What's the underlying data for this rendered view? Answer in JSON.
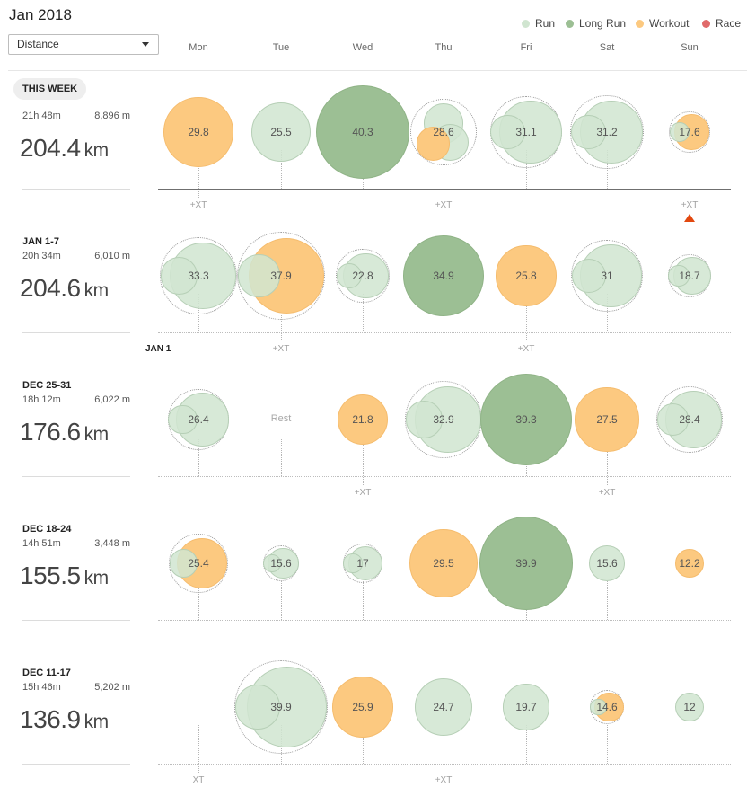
{
  "month_title": "Jan 2018",
  "metric_selector": {
    "value": "Distance"
  },
  "legend": [
    {
      "label": "Run",
      "color": "#d0e5d0"
    },
    {
      "label": "Long Run",
      "color": "#9cbf94"
    },
    {
      "label": "Workout",
      "color": "#fcc980"
    },
    {
      "label": "Race",
      "color": "#e06a6a"
    }
  ],
  "days": [
    "Mon",
    "Tue",
    "Wed",
    "Thu",
    "Fri",
    "Sat",
    "Sun"
  ],
  "weeks": [
    {
      "label": "THIS WEEK",
      "time": "21h 48m",
      "elevation": "8,896 m",
      "total": "204.4",
      "unit": "km",
      "current": true,
      "xt_days": [
        0,
        3,
        6
      ],
      "month_start": null,
      "days": [
        {
          "value": "29.8",
          "type": "workout"
        },
        {
          "value": "25.5",
          "type": "run"
        },
        {
          "value": "40.3",
          "type": "long"
        },
        {
          "value": "28.6",
          "type": "run",
          "parts": [
            "run",
            "run",
            "workout"
          ]
        },
        {
          "value": "31.1",
          "type": "run",
          "parts": [
            "run",
            "run"
          ]
        },
        {
          "value": "31.2",
          "type": "run",
          "parts": [
            "run",
            "run"
          ]
        },
        {
          "value": "17.6",
          "type": "workout",
          "parts": [
            "workout",
            "run"
          ]
        }
      ]
    },
    {
      "label": "JAN 1-7",
      "time": "20h 34m",
      "elevation": "6,010 m",
      "total": "204.6",
      "unit": "km",
      "current": false,
      "xt_days": [
        1,
        4
      ],
      "month_start": "JAN 1",
      "days": [
        {
          "value": "33.3",
          "type": "run",
          "parts": [
            "run",
            "run"
          ]
        },
        {
          "value": "37.9",
          "type": "workout",
          "parts": [
            "workout",
            "run"
          ]
        },
        {
          "value": "22.8",
          "type": "run",
          "parts": [
            "run",
            "run"
          ]
        },
        {
          "value": "34.9",
          "type": "long"
        },
        {
          "value": "25.8",
          "type": "workout"
        },
        {
          "value": "31",
          "type": "run",
          "parts": [
            "run",
            "run"
          ]
        },
        {
          "value": "18.7",
          "type": "run",
          "parts": [
            "run",
            "run"
          ]
        }
      ]
    },
    {
      "label": "DEC 25-31",
      "time": "18h 12m",
      "elevation": "6,022 m",
      "total": "176.6",
      "unit": "km",
      "current": false,
      "xt_days": [
        2,
        5
      ],
      "month_start": null,
      "days": [
        {
          "value": "26.4",
          "type": "run",
          "parts": [
            "run",
            "run"
          ]
        },
        {
          "value": "Rest",
          "type": "rest"
        },
        {
          "value": "21.8",
          "type": "workout"
        },
        {
          "value": "32.9",
          "type": "run",
          "parts": [
            "run",
            "run"
          ]
        },
        {
          "value": "39.3",
          "type": "long"
        },
        {
          "value": "27.5",
          "type": "workout"
        },
        {
          "value": "28.4",
          "type": "run",
          "parts": [
            "run",
            "run"
          ]
        }
      ]
    },
    {
      "label": "DEC 18-24",
      "time": "14h 51m",
      "elevation": "3,448 m",
      "total": "155.5",
      "unit": "km",
      "current": false,
      "xt_days": [],
      "month_start": null,
      "days": [
        {
          "value": "25.4",
          "type": "workout",
          "parts": [
            "workout",
            "run"
          ]
        },
        {
          "value": "15.6",
          "type": "run",
          "parts": [
            "run",
            "run"
          ]
        },
        {
          "value": "17",
          "type": "run",
          "parts": [
            "run",
            "run"
          ]
        },
        {
          "value": "29.5",
          "type": "workout"
        },
        {
          "value": "39.9",
          "type": "long"
        },
        {
          "value": "15.6",
          "type": "run"
        },
        {
          "value": "12.2",
          "type": "workout"
        }
      ]
    },
    {
      "label": "DEC 11-17",
      "time": "15h 46m",
      "elevation": "5,202 m",
      "total": "136.9",
      "unit": "km",
      "current": false,
      "xt_days": [
        0,
        3
      ],
      "xt_texts": [
        "XT",
        "+XT"
      ],
      "month_start": null,
      "days": [
        {
          "value": "",
          "type": "none"
        },
        {
          "value": "39.9",
          "type": "run",
          "parts": [
            "run",
            "run"
          ]
        },
        {
          "value": "25.9",
          "type": "workout"
        },
        {
          "value": "24.7",
          "type": "run"
        },
        {
          "value": "19.7",
          "type": "run"
        },
        {
          "value": "14.6",
          "type": "workout",
          "parts": [
            "workout",
            "run"
          ]
        },
        {
          "value": "12",
          "type": "run"
        }
      ]
    }
  ]
}
